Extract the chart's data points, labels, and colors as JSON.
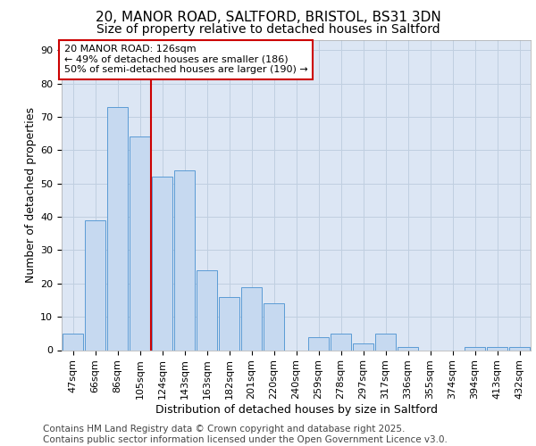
{
  "title_line1": "20, MANOR ROAD, SALTFORD, BRISTOL, BS31 3DN",
  "title_line2": "Size of property relative to detached houses in Saltford",
  "xlabel": "Distribution of detached houses by size in Saltford",
  "ylabel": "Number of detached properties",
  "categories": [
    "47sqm",
    "66sqm",
    "86sqm",
    "105sqm",
    "124sqm",
    "143sqm",
    "163sqm",
    "182sqm",
    "201sqm",
    "220sqm",
    "240sqm",
    "259sqm",
    "278sqm",
    "297sqm",
    "317sqm",
    "336sqm",
    "355sqm",
    "374sqm",
    "394sqm",
    "413sqm",
    "432sqm"
  ],
  "values": [
    5,
    39,
    73,
    64,
    52,
    54,
    24,
    16,
    19,
    14,
    0,
    4,
    5,
    2,
    5,
    1,
    0,
    0,
    1,
    1,
    1
  ],
  "bar_color": "#c6d9f0",
  "bar_edge_color": "#5b9bd5",
  "vline_x": 3.5,
  "vline_color": "#cc0000",
  "annotation_text": "20 MANOR ROAD: 126sqm\n← 49% of detached houses are smaller (186)\n50% of semi-detached houses are larger (190) →",
  "annotation_box_color": "#ffffff",
  "annotation_box_edge_color": "#cc0000",
  "ylim": [
    0,
    93
  ],
  "yticks": [
    0,
    10,
    20,
    30,
    40,
    50,
    60,
    70,
    80,
    90
  ],
  "grid_color": "#c0cfe0",
  "plot_bg_color": "#dce6f4",
  "figure_bg_color": "#ffffff",
  "footer_text": "Contains HM Land Registry data © Crown copyright and database right 2025.\nContains public sector information licensed under the Open Government Licence v3.0.",
  "title_fontsize": 11,
  "subtitle_fontsize": 10,
  "axis_label_fontsize": 9,
  "tick_fontsize": 8,
  "annotation_fontsize": 8,
  "footer_fontsize": 7.5
}
